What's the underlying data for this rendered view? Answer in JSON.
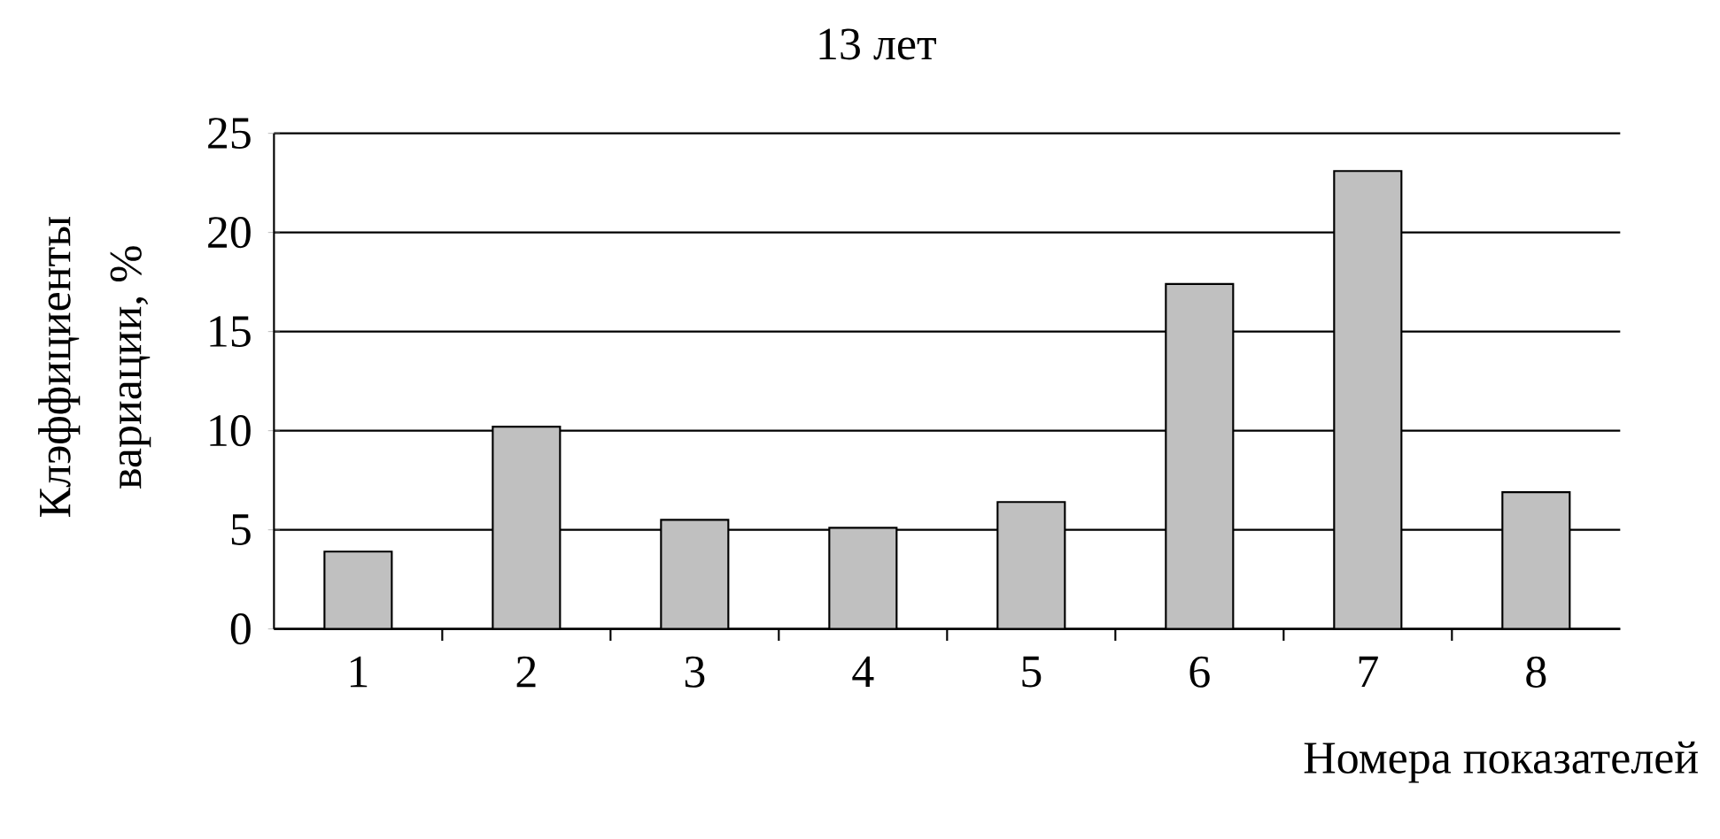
{
  "chart_data": {
    "type": "bar",
    "title": "13 лет",
    "xlabel": "Номера показателей",
    "ylabel": "Клэффициенты вариации, %",
    "categories": [
      "1",
      "2",
      "3",
      "4",
      "5",
      "6",
      "7",
      "8"
    ],
    "values": [
      3.9,
      10.2,
      5.5,
      5.1,
      6.4,
      17.4,
      23.1,
      6.9
    ],
    "color": "#c0c0c0",
    "ylim": [
      0,
      25
    ],
    "yticks": [
      0,
      5,
      10,
      15,
      20,
      25
    ],
    "grid": "y"
  }
}
